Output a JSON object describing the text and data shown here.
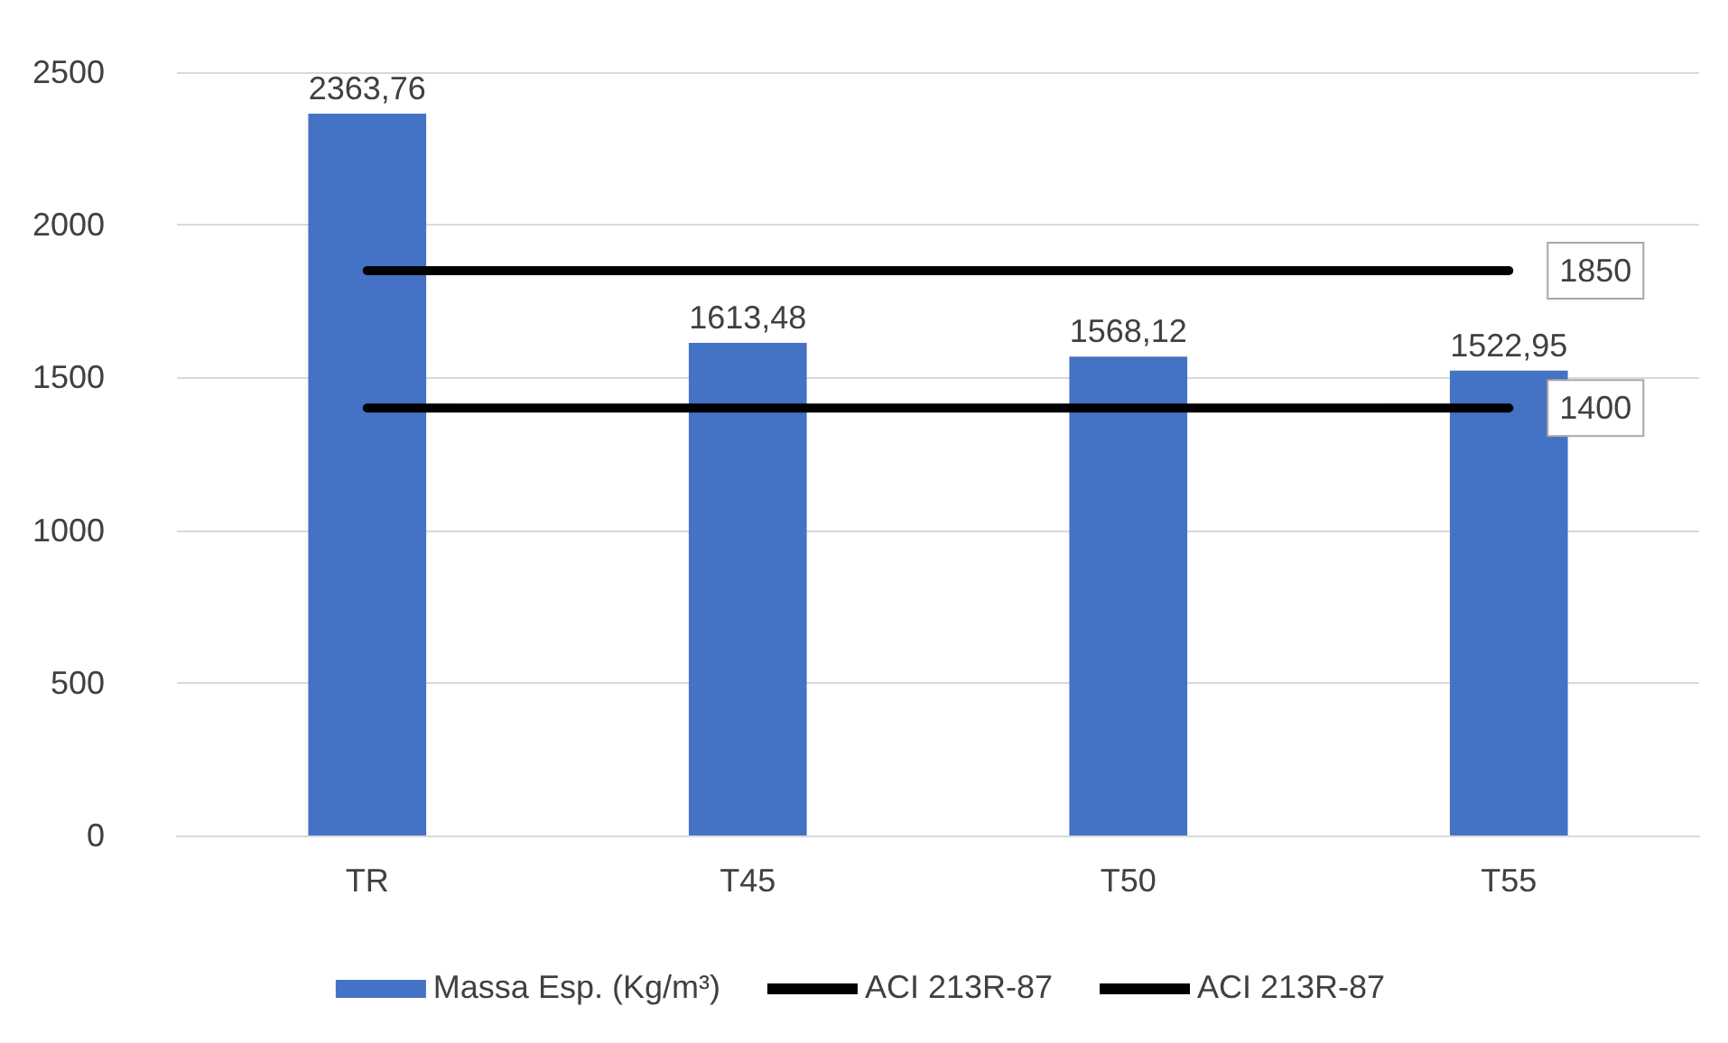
{
  "chart_data": {
    "type": "bar",
    "categories": [
      "TR",
      "T45",
      "T50",
      "T55"
    ],
    "series": [
      {
        "name": "Massa Esp. (Kg/m³)",
        "color": "#4472c4",
        "values": [
          2363.76,
          1613.48,
          1568.12,
          1522.95
        ],
        "value_labels": [
          "2363,76",
          "1613,48",
          "1568,12",
          "1522,95"
        ]
      },
      {
        "name": "ACI 213R-87",
        "type": "line",
        "color": "#000000",
        "values": [
          1850,
          1850,
          1850,
          1850
        ],
        "value_labels": [
          null,
          null,
          null,
          "1850"
        ]
      },
      {
        "name": "ACI 213R-87",
        "type": "line",
        "color": "#000000",
        "values": [
          1400,
          1400,
          1400,
          1400
        ],
        "value_labels": [
          null,
          null,
          null,
          "1400"
        ]
      }
    ],
    "ylim": [
      0,
      2500
    ],
    "yticks": [
      0,
      500,
      1000,
      1500,
      2000,
      2500
    ],
    "grid": "y",
    "legend": "bottom",
    "marker": "none",
    "line_style": "solid"
  }
}
